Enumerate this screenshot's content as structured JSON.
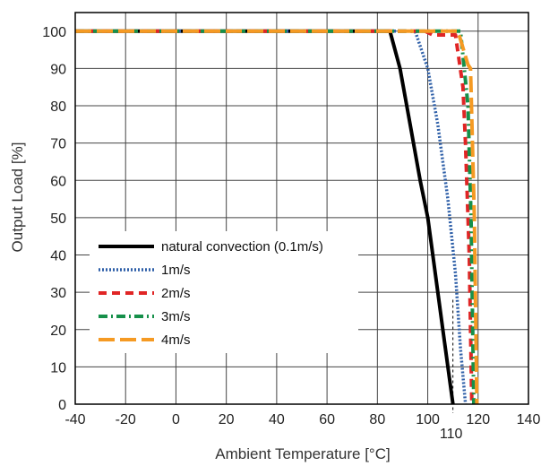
{
  "chart_data": {
    "type": "line",
    "title": "",
    "xlabel": "Ambient Temperature [°C]",
    "ylabel": "Output Load [%]",
    "xlim": [
      -40,
      140
    ],
    "ylim": [
      0,
      105
    ],
    "x_ticks": [
      -40,
      -20,
      0,
      20,
      40,
      60,
      80,
      100,
      120,
      140
    ],
    "y_ticks": [
      0,
      10,
      20,
      30,
      40,
      50,
      60,
      70,
      80,
      90,
      100
    ],
    "grid": true,
    "legend_placement": "lower-left",
    "annotations": [
      {
        "text": "110",
        "x": 110,
        "note": "dashed marker below x-axis"
      }
    ],
    "series": [
      {
        "name": "natural convection (0.1m/s)",
        "color": "#000000",
        "style": "solid",
        "points": [
          [
            -40,
            100
          ],
          [
            85,
            100
          ],
          [
            89,
            90
          ],
          [
            93,
            75
          ],
          [
            97,
            60
          ],
          [
            100,
            50
          ],
          [
            103,
            35
          ],
          [
            106,
            20
          ],
          [
            110,
            0
          ]
        ]
      },
      {
        "name": "1m/s",
        "color": "#2e5fa8",
        "style": "dotted",
        "points": [
          [
            -40,
            100
          ],
          [
            95,
            100
          ],
          [
            100,
            90
          ],
          [
            104,
            75
          ],
          [
            108,
            55
          ],
          [
            111,
            35
          ],
          [
            113,
            15
          ],
          [
            115,
            0
          ]
        ]
      },
      {
        "name": "2m/s",
        "color": "#e02525",
        "style": "dashed",
        "points": [
          [
            -40,
            100
          ],
          [
            99,
            100
          ],
          [
            102,
            99
          ],
          [
            111,
            99
          ],
          [
            114,
            85
          ],
          [
            115,
            70
          ],
          [
            116.5,
            40
          ],
          [
            117.5,
            0
          ]
        ]
      },
      {
        "name": "3m/s",
        "color": "#16904a",
        "style": "dashdot",
        "points": [
          [
            -40,
            100
          ],
          [
            103,
            100
          ],
          [
            113,
            100
          ],
          [
            116,
            80
          ],
          [
            117.2,
            50
          ],
          [
            118.3,
            0
          ]
        ]
      },
      {
        "name": "4m/s",
        "color": "#f59a23",
        "style": "longdash",
        "points": [
          [
            -40,
            100
          ],
          [
            112,
            100
          ],
          [
            116,
            91
          ],
          [
            117,
            90
          ],
          [
            118.5,
            50
          ],
          [
            119.5,
            0
          ]
        ]
      }
    ],
    "colors": {
      "grid": "#444444",
      "axis": "#000000",
      "background": "#ffffff"
    }
  }
}
